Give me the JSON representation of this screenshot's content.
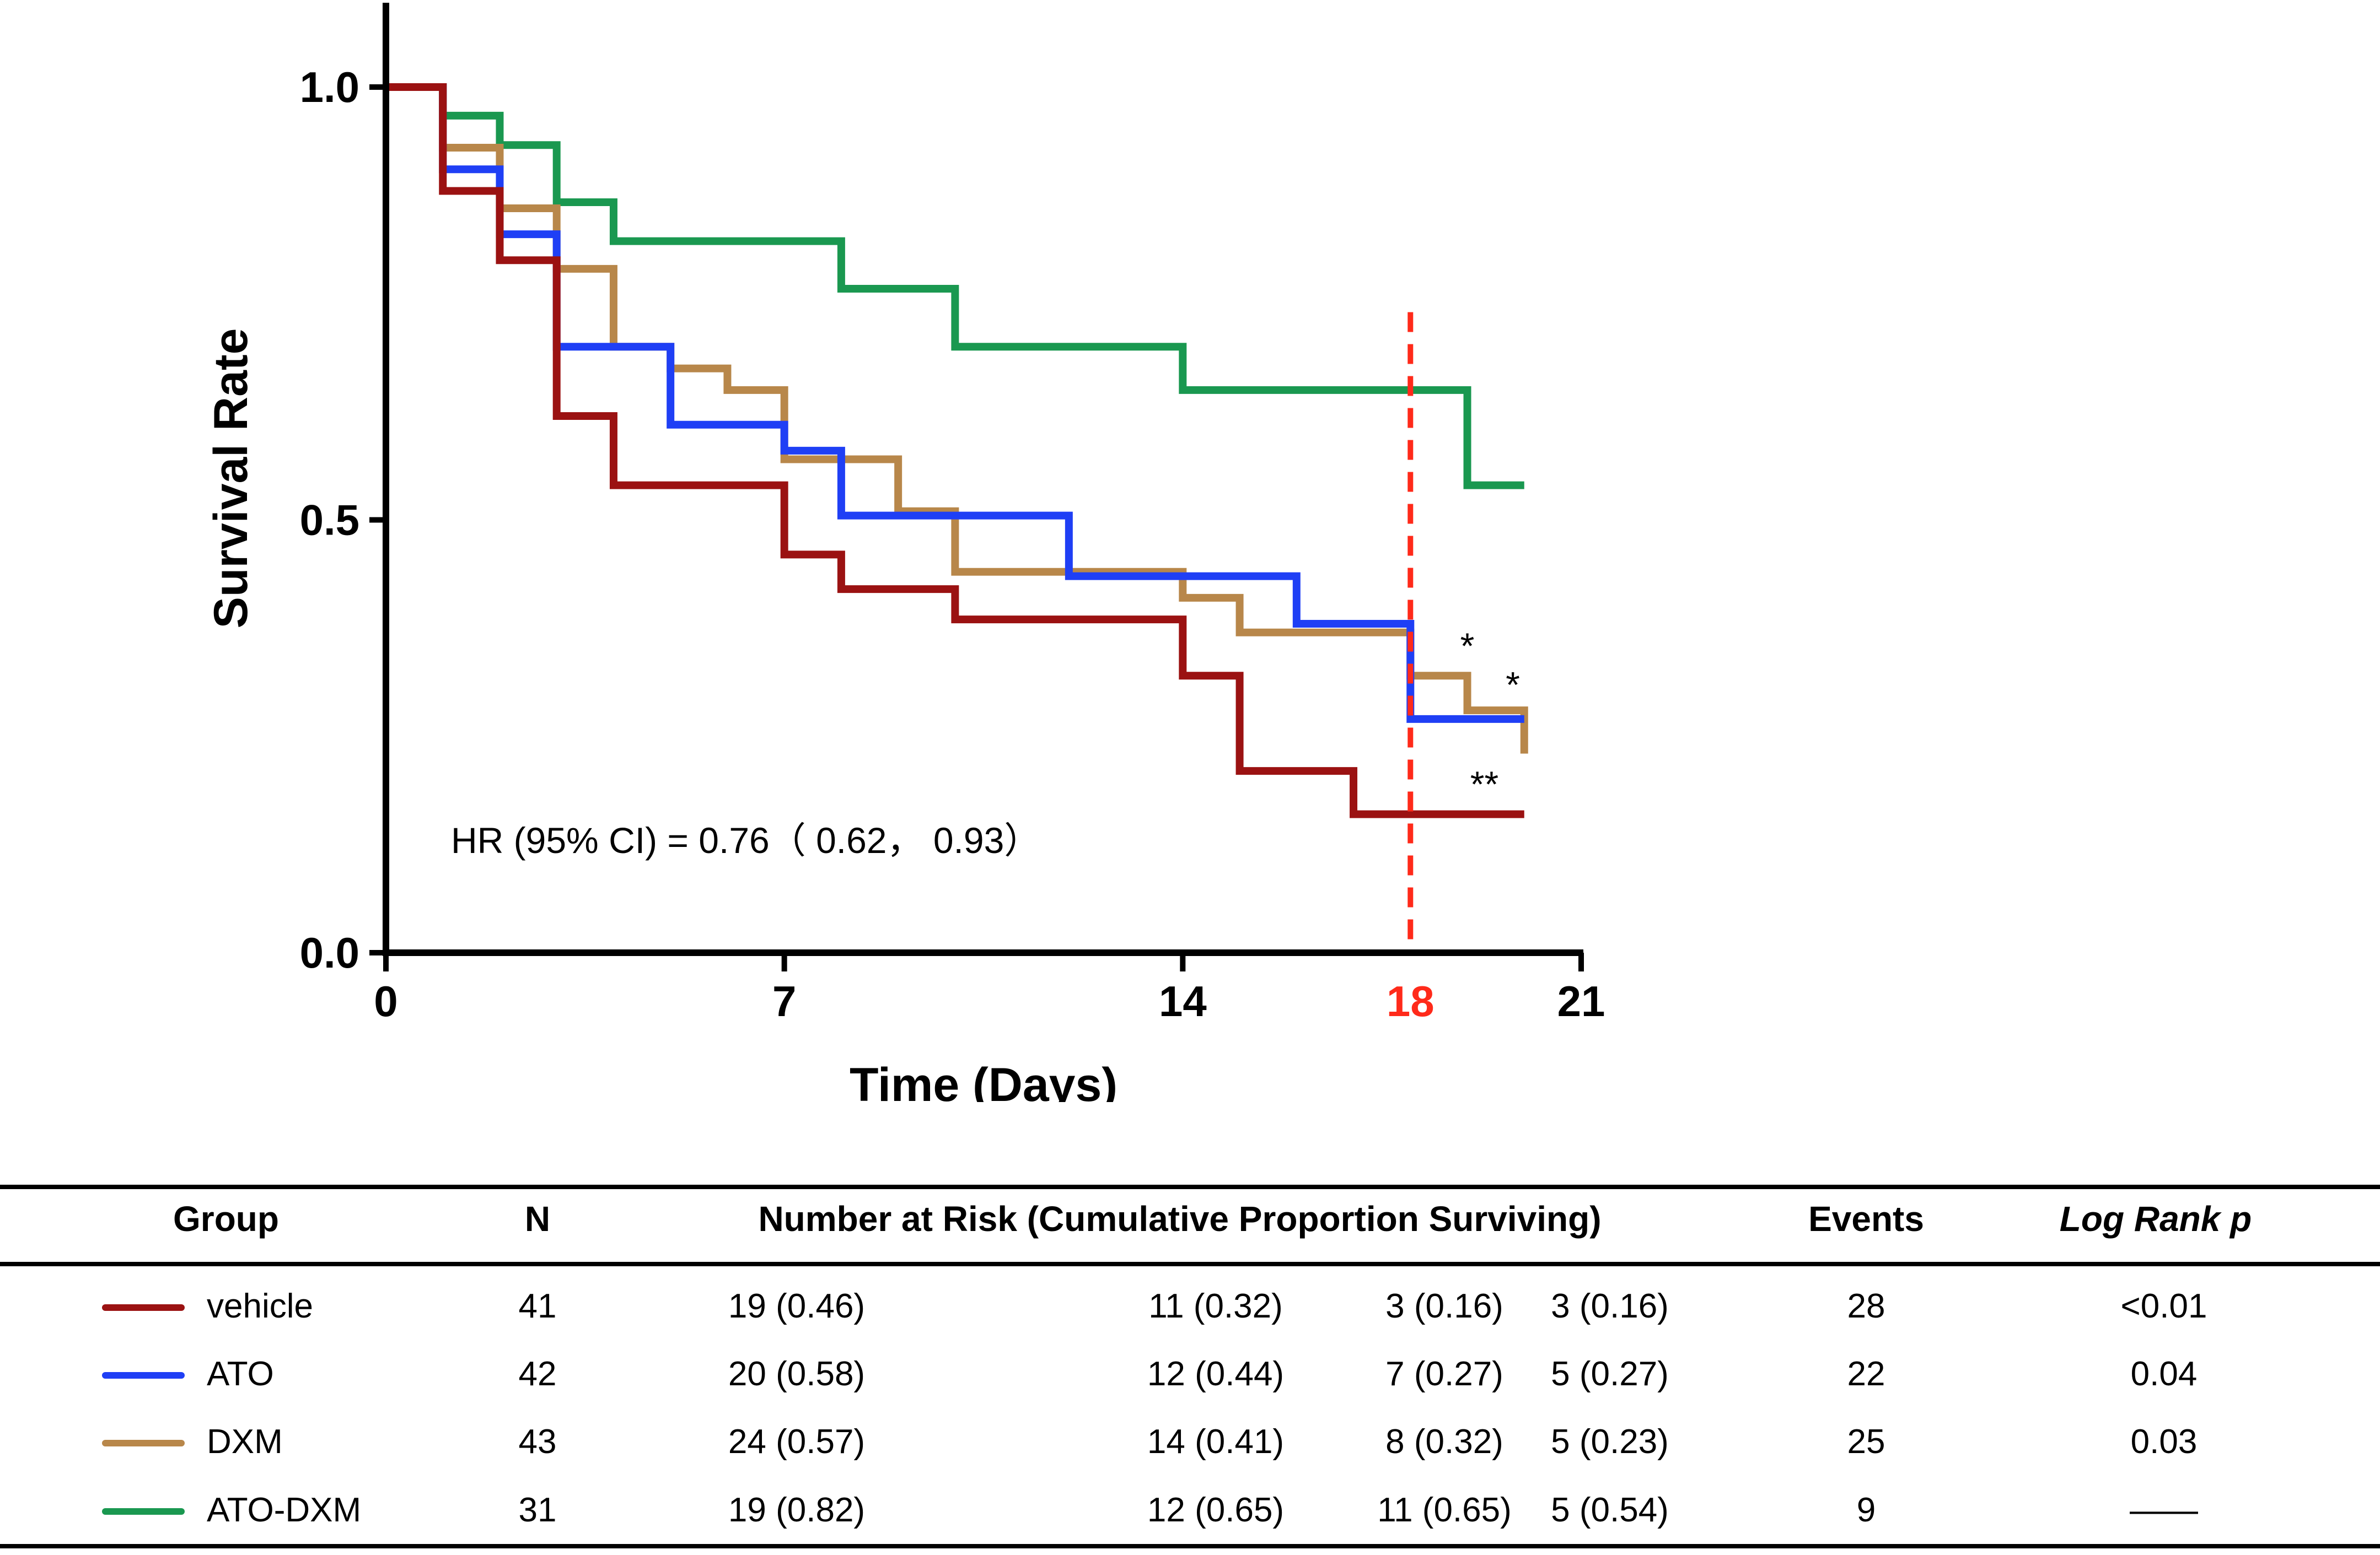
{
  "chart_data": {
    "type": "line",
    "step": true,
    "xlabel": "Time (Days)",
    "ylabel": "Survival Rate",
    "xlim": [
      0,
      21
    ],
    "ylim": [
      0,
      1
    ],
    "xticks": [
      "0",
      "7",
      "14",
      "21"
    ],
    "xtick_values": [
      0,
      7,
      14,
      21
    ],
    "yticks": [
      "0.0",
      "0.5",
      "1.0"
    ],
    "ytick_values": [
      0,
      0.5,
      1.0
    ],
    "marker_line": {
      "x": 18,
      "label": "18",
      "color": "#ff2a1a"
    },
    "annotation": "HR (95% CI) = 0.76（ 0.62， 0.93）",
    "series": [
      {
        "name": "ATO-DXM",
        "color": "#1a9850",
        "x": [
          0,
          1,
          2,
          3,
          4,
          8,
          10,
          14,
          19,
          20
        ],
        "y": [
          1.0,
          0.967,
          0.933,
          0.867,
          0.822,
          0.767,
          0.7,
          0.65,
          0.54,
          0.54
        ]
      },
      {
        "name": "DXM",
        "color": "#b8874a",
        "x": [
          0,
          1,
          2,
          3,
          4,
          5,
          6,
          7,
          9,
          10,
          14,
          15,
          18,
          19,
          20
        ],
        "y": [
          1.0,
          0.93,
          0.86,
          0.79,
          0.7,
          0.675,
          0.65,
          0.57,
          0.51,
          0.44,
          0.41,
          0.37,
          0.32,
          0.28,
          0.23
        ]
      },
      {
        "name": "ATO",
        "color": "#1f3ff5",
        "x": [
          0,
          1,
          2,
          3,
          5,
          7,
          8,
          12,
          16,
          18,
          20
        ],
        "y": [
          1.0,
          0.905,
          0.83,
          0.7,
          0.61,
          0.58,
          0.505,
          0.435,
          0.38,
          0.27,
          0.27
        ]
      },
      {
        "name": "vehicle",
        "color": "#9b1212",
        "x": [
          0,
          1,
          2,
          3,
          4,
          7,
          8,
          10,
          14,
          15,
          17,
          18,
          20
        ],
        "y": [
          1.0,
          0.88,
          0.8,
          0.62,
          0.54,
          0.46,
          0.42,
          0.385,
          0.32,
          0.21,
          0.16,
          0.16,
          0.16
        ]
      }
    ],
    "significance": [
      {
        "series": "DXM",
        "label": "*",
        "x": 19,
        "y": 0.34
      },
      {
        "series": "ATO",
        "label": "*",
        "x": 19.8,
        "y": 0.295
      },
      {
        "series": "vehicle",
        "label": "**",
        "x": 19.3,
        "y": 0.18
      }
    ]
  },
  "table": {
    "headers": {
      "group": "Group",
      "n": "N",
      "risk": "Number at Risk (Cumulative Proportion Surviving)",
      "events": "Events",
      "logrank": "Log Rank p"
    },
    "rows": [
      {
        "name": "vehicle",
        "color": "#9b1212",
        "n": "41",
        "r1": "19 (0.46)",
        "r2": "11 (0.32)",
        "r3": "3 (0.16)",
        "r4": "3 (0.16)",
        "events": "28",
        "p": "<0.01"
      },
      {
        "name": "ATO",
        "color": "#1f3ff5",
        "n": "42",
        "r1": "20 (0.58)",
        "r2": "12 (0.44)",
        "r3": "7 (0.27)",
        "r4": "5 (0.27)",
        "events": "22",
        "p": "0.04"
      },
      {
        "name": "DXM",
        "color": "#b8874a",
        "n": "43",
        "r1": "24 (0.57)",
        "r2": "14 (0.41)",
        "r3": "8 (0.32)",
        "r4": "5 (0.23)",
        "events": "25",
        "p": "0.03"
      },
      {
        "name": "ATO-DXM",
        "color": "#1a9850",
        "n": "31",
        "r1": "19 (0.82)",
        "r2": "12 (0.65)",
        "r3": "11 (0.65)",
        "r4": "5 (0.54)",
        "events": "9",
        "p": "——"
      }
    ]
  }
}
